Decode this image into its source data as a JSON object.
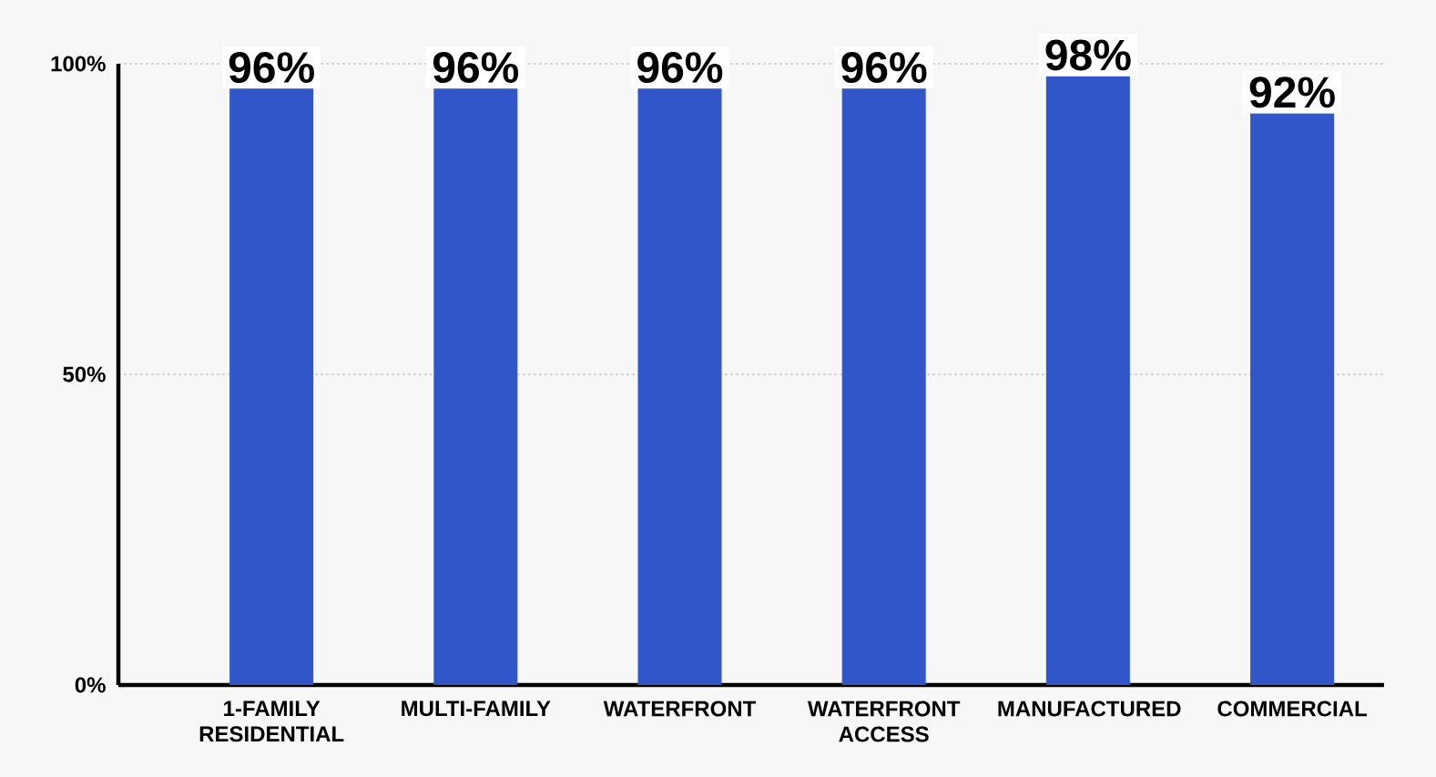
{
  "chart_data": {
    "type": "bar",
    "categories": [
      "1-FAMILY RESIDENTIAL",
      "MULTI-FAMILY",
      "WATERFRONT",
      "WATERFRONT ACCESS",
      "MANUFACTURED",
      "COMMERCIAL"
    ],
    "values": [
      96,
      96,
      96,
      96,
      98,
      92
    ],
    "value_labels": [
      "96%",
      "96%",
      "96%",
      "96%",
      "98%",
      "92%"
    ],
    "color": "#3056c9",
    "ylim": [
      0,
      100
    ],
    "yticks": [
      {
        "value": 0,
        "label": "0%"
      },
      {
        "value": 50,
        "label": "50%"
      },
      {
        "value": 100,
        "label": "100%"
      }
    ],
    "grid": "y"
  }
}
